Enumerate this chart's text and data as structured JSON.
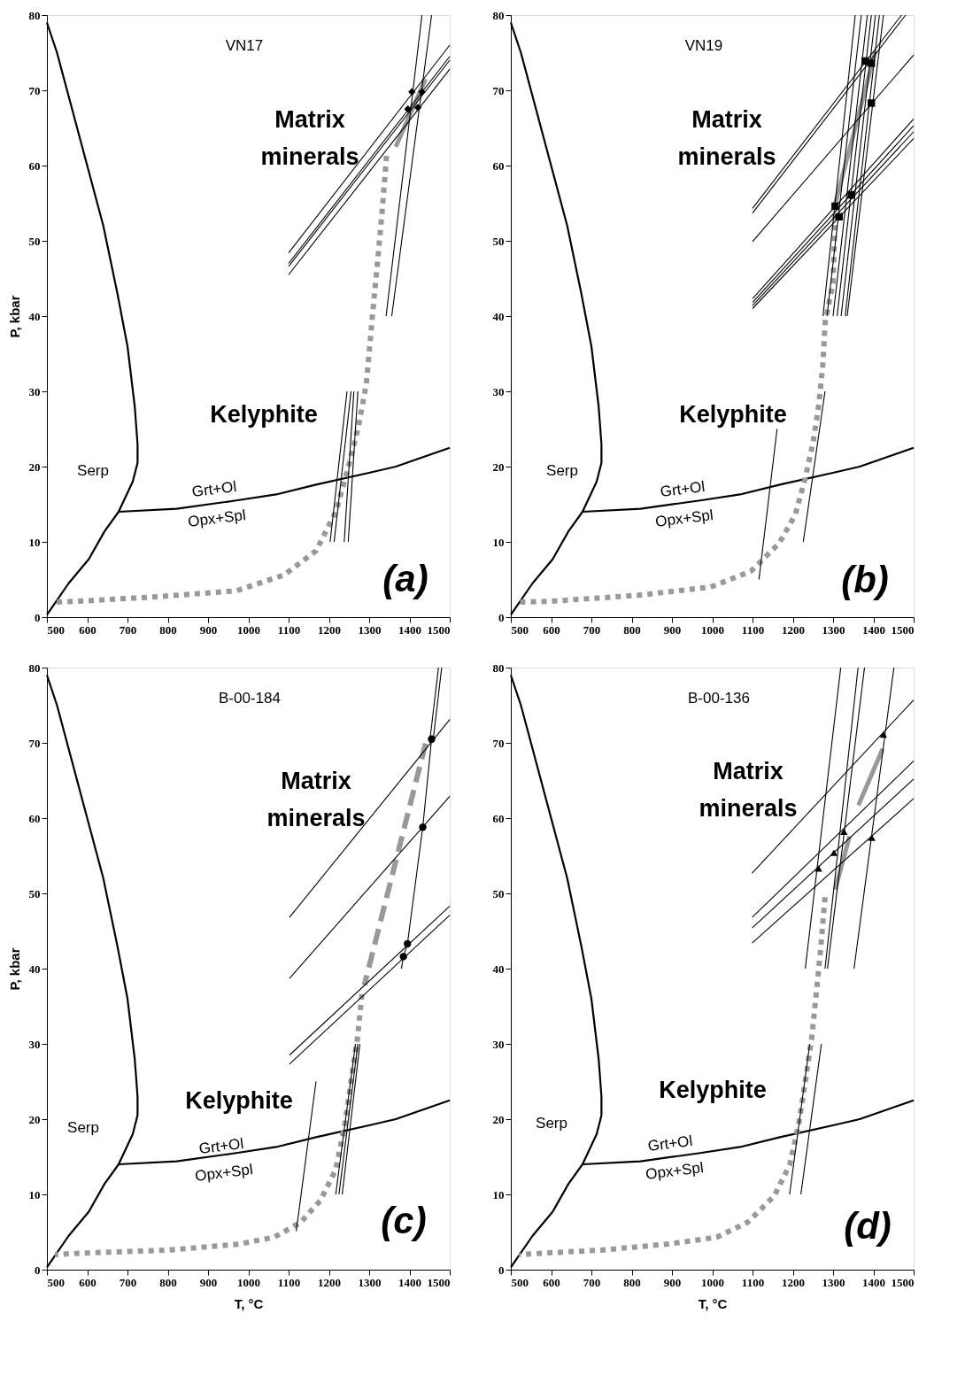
{
  "chart_data": [
    {
      "type": "line",
      "xlim": [
        500,
        1500
      ],
      "ylim": [
        0,
        80
      ],
      "xticks": [
        500,
        600,
        700,
        800,
        900,
        1000,
        1100,
        1200,
        1300,
        1400,
        1500
      ],
      "yticks": [
        0,
        10,
        20,
        30,
        40,
        50,
        60,
        70,
        80
      ],
      "ylabel": "P, kbar",
      "series": [
        {
          "color": "#000000",
          "x": [
            500,
            525,
            575,
            605,
            640,
            675,
            700,
            718,
            725,
            725,
            713,
            678,
            643,
            604,
            554,
            500
          ],
          "values": [
            79,
            75,
            65,
            59,
            52,
            43,
            36,
            28,
            23,
            20.5,
            18,
            14,
            11.4,
            7.7,
            4.5,
            0.3
          ]
        },
        {
          "color": "#000000",
          "x": [
            678,
            822,
            970,
            1069,
            1168,
            1302,
            1366,
            1500
          ],
          "values": [
            14,
            14.4,
            15.5,
            16.3,
            17.6,
            19.2,
            20,
            22.5
          ]
        },
        {
          "color": "#999999",
          "line_style": "dotted",
          "x": [
            1343,
            1333,
            1323,
            1308,
            1293,
            1273,
            1248,
            1218,
            1168,
            1089,
            970,
            772,
            574,
            520
          ],
          "values": [
            61.3,
            54.4,
            48.5,
            40,
            31,
            25.2,
            19.9,
            14.1,
            8.8,
            5.6,
            3.5,
            2.7,
            2.1,
            2
          ]
        },
        {
          "color": "#999999",
          "line_style": "solid",
          "x": [
            1440,
            1366
          ],
          "values": [
            71.5,
            62.5
          ]
        },
        {
          "color": "#000000",
          "x": [
            1342,
            1431
          ],
          "values": [
            40,
            80
          ]
        },
        {
          "color": "#000000",
          "x": [
            1356,
            1455
          ],
          "values": [
            40,
            80
          ]
        },
        {
          "color": "#000000",
          "x": [
            1100,
            1500
          ],
          "values": [
            48.4,
            76
          ]
        },
        {
          "color": "#000000",
          "x": [
            1100,
            1500
          ],
          "values": [
            47,
            74.5
          ]
        },
        {
          "color": "#000000",
          "x": [
            1100,
            1500
          ],
          "values": [
            46.6,
            74
          ]
        },
        {
          "color": "#000000",
          "x": [
            1100,
            1500
          ],
          "values": [
            45.5,
            72.8
          ]
        },
        {
          "color": "#000000",
          "x": [
            1203,
            1245
          ],
          "values": [
            10,
            30
          ]
        },
        {
          "color": "#000000",
          "x": [
            1213,
            1255
          ],
          "values": [
            10,
            30
          ]
        },
        {
          "color": "#000000",
          "x": [
            1238,
            1262
          ],
          "values": [
            10,
            30
          ]
        },
        {
          "color": "#000000",
          "x": [
            1248,
            1272
          ],
          "values": [
            10,
            30
          ]
        },
        {
          "type": "scatter",
          "marker": "diamond",
          "color": "#000000",
          "x": [
            1406,
            1431,
            1396,
            1421
          ],
          "values": [
            69.8,
            69.8,
            67.5,
            67.7
          ]
        }
      ],
      "annotations": [
        "VN17",
        "Matrix minerals",
        "Kelyphite",
        "Serp",
        "Grt+Ol",
        "Opx+Spl",
        "(a)"
      ]
    },
    {
      "type": "line",
      "xlim": [
        500,
        1500
      ],
      "ylim": [
        0,
        80
      ],
      "xticks": [
        500,
        600,
        700,
        800,
        900,
        1000,
        1100,
        1200,
        1300,
        1400,
        1500
      ],
      "yticks": [
        0,
        10,
        20,
        30,
        40,
        50,
        60,
        70,
        80
      ],
      "series": [
        {
          "color": "#000000",
          "x": [
            500,
            525,
            575,
            605,
            640,
            675,
            700,
            718,
            725,
            725,
            713,
            678,
            643,
            604,
            554,
            500
          ],
          "values": [
            79,
            75,
            65,
            59,
            52,
            43,
            36,
            28,
            23,
            20.5,
            18,
            14,
            11.4,
            7.7,
            4.5,
            0.3
          ]
        },
        {
          "color": "#000000",
          "x": [
            678,
            822,
            970,
            1069,
            1168,
            1302,
            1366,
            1500
          ],
          "values": [
            14,
            14.4,
            15.5,
            16.3,
            17.6,
            19.2,
            20,
            22.5
          ]
        },
        {
          "color": "#999999",
          "line_style": "dotted",
          "x": [
            1305,
            1300,
            1280,
            1275,
            1265,
            1250,
            1230,
            1206,
            1166,
            1096,
            996,
            816,
            597,
            520
          ],
          "values": [
            53.5,
            44.4,
            39.1,
            33.8,
            28.4,
            23.1,
            18.3,
            13.6,
            9.8,
            6.1,
            4,
            2.9,
            2.1,
            2
          ]
        },
        {
          "color": "#999999",
          "line_style": "solid",
          "x": [
            1405,
            1305
          ],
          "values": [
            75.2,
            54.9
          ]
        },
        {
          "color": "#000000",
          "x": [
            1275,
            1355
          ],
          "values": [
            40,
            80
          ]
        },
        {
          "color": "#000000",
          "x": [
            1285,
            1370
          ],
          "values": [
            40,
            80
          ]
        },
        {
          "color": "#000000",
          "x": [
            1300,
            1385
          ],
          "values": [
            40,
            80
          ]
        },
        {
          "color": "#000000",
          "x": [
            1310,
            1395
          ],
          "values": [
            40,
            80
          ]
        },
        {
          "color": "#000000",
          "x": [
            1320,
            1405
          ],
          "values": [
            40,
            80
          ]
        },
        {
          "color": "#000000",
          "x": [
            1330,
            1415
          ],
          "values": [
            40,
            80
          ]
        },
        {
          "color": "#000000",
          "x": [
            1335,
            1425
          ],
          "values": [
            40,
            80
          ]
        },
        {
          "color": "#000000",
          "x": [
            1100,
            1470
          ],
          "values": [
            54.3,
            80
          ]
        },
        {
          "color": "#000000",
          "x": [
            1100,
            1480
          ],
          "values": [
            53.7,
            80
          ]
        },
        {
          "color": "#000000",
          "x": [
            1100,
            1500
          ],
          "values": [
            49.9,
            74.7
          ]
        },
        {
          "color": "#000000",
          "x": [
            1100,
            1500
          ],
          "values": [
            42.3,
            66.2
          ]
        },
        {
          "color": "#000000",
          "x": [
            1100,
            1500
          ],
          "values": [
            41.8,
            65.3
          ]
        },
        {
          "color": "#000000",
          "x": [
            1100,
            1500
          ],
          "values": [
            41.4,
            64.5
          ]
        },
        {
          "color": "#000000",
          "x": [
            1100,
            1500
          ],
          "values": [
            41,
            63.6
          ]
        },
        {
          "color": "#000000",
          "x": [
            1116,
            1161
          ],
          "values": [
            5,
            25
          ]
        },
        {
          "color": "#000000",
          "x": [
            1226,
            1280
          ],
          "values": [
            10,
            30
          ]
        },
        {
          "type": "scatter",
          "marker": "square",
          "color": "#000000",
          "x": [
            1380,
            1395,
            1395,
            1345,
            1305,
            1315
          ],
          "values": [
            73.9,
            73.6,
            68.3,
            56.1,
            54.6,
            53.2
          ]
        }
      ],
      "annotations": [
        "VN19",
        "Matrix minerals",
        "Kelyphite",
        "Serp",
        "Grt+Ol",
        "Opx+Spl",
        "(b)"
      ]
    },
    {
      "type": "line",
      "xlim": [
        500,
        1500
      ],
      "ylim": [
        0,
        80
      ],
      "xticks": [
        500,
        600,
        700,
        800,
        900,
        1000,
        1100,
        1200,
        1300,
        1400,
        1500
      ],
      "yticks": [
        0,
        10,
        20,
        30,
        40,
        50,
        60,
        70,
        80
      ],
      "xlabel": "T, °C",
      "ylabel": "P, kbar",
      "series": [
        {
          "color": "#000000",
          "x": [
            500,
            525,
            575,
            605,
            640,
            675,
            700,
            718,
            725,
            725,
            713,
            678,
            643,
            604,
            554,
            500
          ],
          "values": [
            79,
            75,
            65,
            59,
            52,
            43,
            36,
            28,
            23,
            20.5,
            18,
            14,
            11.4,
            7.7,
            4.5,
            0.3
          ]
        },
        {
          "color": "#000000",
          "x": [
            678,
            822,
            970,
            1069,
            1168,
            1302,
            1366,
            1500
          ],
          "values": [
            14,
            14.4,
            15.5,
            16.3,
            17.6,
            19.2,
            20,
            22.5
          ]
        },
        {
          "color": "#999999",
          "line_style": "dotted",
          "x": [
            1282,
            1271,
            1255,
            1239,
            1217,
            1179,
            1130,
            1064,
            977,
            803,
            585,
            520
          ],
          "values": [
            36.6,
            30.8,
            25,
            19.1,
            13.3,
            9.2,
            6.3,
            4.3,
            3.4,
            2.6,
            2.2,
            2
          ]
        },
        {
          "color": "#999999",
          "line_style": "dashed",
          "x": [
            1440,
            1288
          ],
          "values": [
            69.9,
            37.8
          ]
        },
        {
          "color": "#000000",
          "x": [
            1380,
            1385,
            1395,
            1433,
            1455
          ],
          "values": [
            40,
            41.6,
            43.3,
            58.8,
            70.5
          ]
        },
        {
          "color": "#000000",
          "x": [
            1450,
            1472
          ],
          "values": [
            70,
            80
          ]
        },
        {
          "color": "#000000",
          "x": [
            1458,
            1480
          ],
          "values": [
            70,
            80
          ]
        },
        {
          "color": "#000000",
          "x": [
            1102,
            1500
          ],
          "values": [
            46.8,
            73.1
          ]
        },
        {
          "color": "#000000",
          "x": [
            1102,
            1500
          ],
          "values": [
            38.7,
            62.9
          ]
        },
        {
          "color": "#000000",
          "x": [
            1102,
            1500
          ],
          "values": [
            28.5,
            48.3
          ]
        },
        {
          "color": "#000000",
          "x": [
            1102,
            1500
          ],
          "values": [
            27.3,
            47.1
          ]
        },
        {
          "color": "#000000",
          "x": [
            1119,
            1168
          ],
          "values": [
            5.1,
            25
          ]
        },
        {
          "color": "#000000",
          "x": [
            1217,
            1266
          ],
          "values": [
            10,
            30
          ]
        },
        {
          "color": "#000000",
          "x": [
            1225,
            1272
          ],
          "values": [
            10,
            30
          ]
        },
        {
          "color": "#000000",
          "x": [
            1233,
            1277
          ],
          "values": [
            10,
            30
          ]
        },
        {
          "type": "scatter",
          "marker": "circle",
          "color": "#000000",
          "x": [
            1455,
            1433,
            1395,
            1385
          ],
          "values": [
            70.5,
            58.8,
            43.3,
            41.6
          ]
        }
      ],
      "annotations": [
        "B-00-184",
        "Matrix minerals",
        "Kelyphite",
        "Serp",
        "Grt+Ol",
        "Opx+Spl",
        "(c)"
      ]
    },
    {
      "type": "line",
      "xlim": [
        500,
        1500
      ],
      "ylim": [
        0,
        80
      ],
      "xticks": [
        500,
        600,
        700,
        800,
        900,
        1000,
        1100,
        1200,
        1300,
        1400,
        1500
      ],
      "yticks": [
        0,
        10,
        20,
        30,
        40,
        50,
        60,
        70,
        80
      ],
      "xlabel": "T, °C",
      "series": [
        {
          "color": "#000000",
          "x": [
            500,
            525,
            575,
            605,
            640,
            675,
            700,
            718,
            725,
            725,
            713,
            678,
            643,
            604,
            554,
            500
          ],
          "values": [
            79,
            75,
            65,
            59,
            52,
            43,
            36,
            28,
            23,
            20.5,
            18,
            14,
            11.4,
            7.7,
            4.5,
            0.3
          ]
        },
        {
          "color": "#000000",
          "x": [
            678,
            822,
            970,
            1069,
            1168,
            1302,
            1366,
            1500
          ],
          "values": [
            14,
            14.4,
            15.5,
            16.3,
            17.6,
            19.2,
            20,
            22.5
          ]
        },
        {
          "color": "#999999",
          "line_style": "dotted",
          "x": [
            1280,
            1269,
            1258,
            1247,
            1231,
            1214,
            1192,
            1154,
            1088,
            1011,
            890,
            725,
            582,
            520
          ],
          "values": [
            49.5,
            42.5,
            36.6,
            30.8,
            25,
            19.1,
            13.9,
            9.8,
            6.3,
            4.3,
            3.4,
            2.6,
            2.2,
            2
          ]
        },
        {
          "color": "#999999",
          "line_style": "solid",
          "x": [
            1423,
            1363
          ],
          "values": [
            69.2,
            61.7
          ]
        },
        {
          "color": "#999999",
          "line_style": "solid",
          "x": [
            1341,
            1305
          ],
          "values": [
            57.6,
            50.5
          ]
        },
        {
          "color": "#000000",
          "x": [
            1231,
            1319
          ],
          "values": [
            40,
            80
          ]
        },
        {
          "color": "#000000",
          "x": [
            1280,
            1362
          ],
          "values": [
            40,
            80
          ]
        },
        {
          "color": "#000000",
          "x": [
            1286,
            1378
          ],
          "values": [
            40,
            80
          ]
        },
        {
          "color": "#000000",
          "x": [
            1352,
            1451
          ],
          "values": [
            40,
            80
          ]
        },
        {
          "color": "#000000",
          "x": [
            1099,
            1500
          ],
          "values": [
            52.7,
            75.7
          ]
        },
        {
          "color": "#000000",
          "x": [
            1099,
            1500
          ],
          "values": [
            46.8,
            67.6
          ]
        },
        {
          "color": "#000000",
          "x": [
            1099,
            1500
          ],
          "values": [
            45.4,
            65.2
          ]
        },
        {
          "color": "#000000",
          "x": [
            1099,
            1500
          ],
          "values": [
            43.4,
            62.6
          ]
        },
        {
          "color": "#000000",
          "x": [
            1192,
            1242
          ],
          "values": [
            10,
            30
          ]
        },
        {
          "color": "#000000",
          "x": [
            1220,
            1271
          ],
          "values": [
            10,
            30
          ]
        },
        {
          "type": "scatter",
          "marker": "triangle",
          "color": "#000000",
          "x": [
            1264,
            1302,
            1327,
            1396,
            1425
          ],
          "values": [
            53.3,
            55.4,
            58.2,
            57.4,
            71.1
          ]
        }
      ],
      "annotations": [
        "B-00-136",
        "Matrix minerals",
        "Kelyphite",
        "Serp",
        "Grt+Ol",
        "Opx+Spl",
        "(d)"
      ]
    }
  ]
}
